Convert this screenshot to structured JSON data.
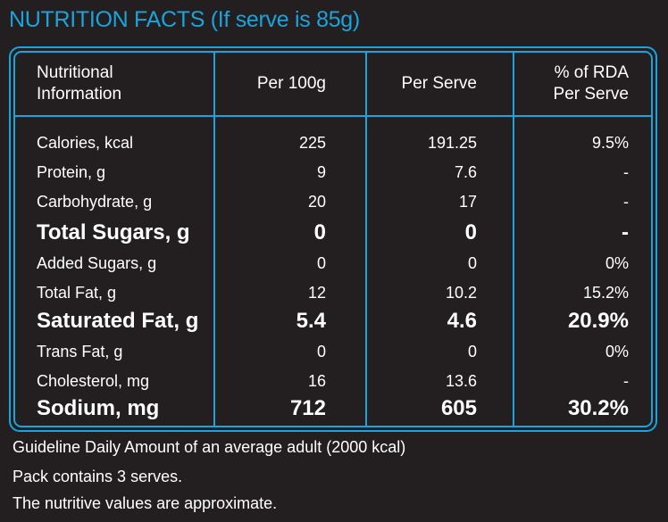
{
  "title": "NUTRITION FACTS (If serve is 85g)",
  "colors": {
    "accent": "#1aa3dc",
    "background": "#231f20",
    "text": "#ffffff"
  },
  "header": {
    "col0_line1": "Nutritional",
    "col0_line2": "Information",
    "col1": "Per 100g",
    "col2": "Per Serve",
    "col3_line1": "% of RDA",
    "col3_line2": "Per Serve"
  },
  "rows": [
    {
      "name": "Calories, kcal",
      "per100": "225",
      "serve": "191.25",
      "rda": "9.5%",
      "emphasis": false
    },
    {
      "name": "Protein, g",
      "per100": "9",
      "serve": "7.6",
      "rda": "-",
      "emphasis": false
    },
    {
      "name": "Carbohydrate, g",
      "per100": "20",
      "serve": "17",
      "rda": "-",
      "emphasis": false
    },
    {
      "name": "Total Sugars, g",
      "per100": "0",
      "serve": "0",
      "rda": "-",
      "emphasis": true
    },
    {
      "name": "Added Sugars, g",
      "per100": "0",
      "serve": "0",
      "rda": "0%",
      "emphasis": false
    },
    {
      "name": "Total Fat, g",
      "per100": "12",
      "serve": "10.2",
      "rda": "15.2%",
      "emphasis": false
    },
    {
      "name": "Saturated Fat, g",
      "per100": "5.4",
      "serve": "4.6",
      "rda": "20.9%",
      "emphasis": true
    },
    {
      "name": "Trans Fat, g",
      "per100": "0",
      "serve": "0",
      "rda": "0%",
      "emphasis": false
    },
    {
      "name": "Cholesterol, mg",
      "per100": "16",
      "serve": "13.6",
      "rda": "-",
      "emphasis": false
    },
    {
      "name": "Sodium, mg",
      "per100": "712",
      "serve": "605",
      "rda": "30.2%",
      "emphasis": true
    }
  ],
  "footer": {
    "line1": "Guideline Daily Amount of an average adult (2000 kcal)",
    "line2": "Pack contains 3 serves.",
    "line3": "The nutritive values are approximate."
  }
}
